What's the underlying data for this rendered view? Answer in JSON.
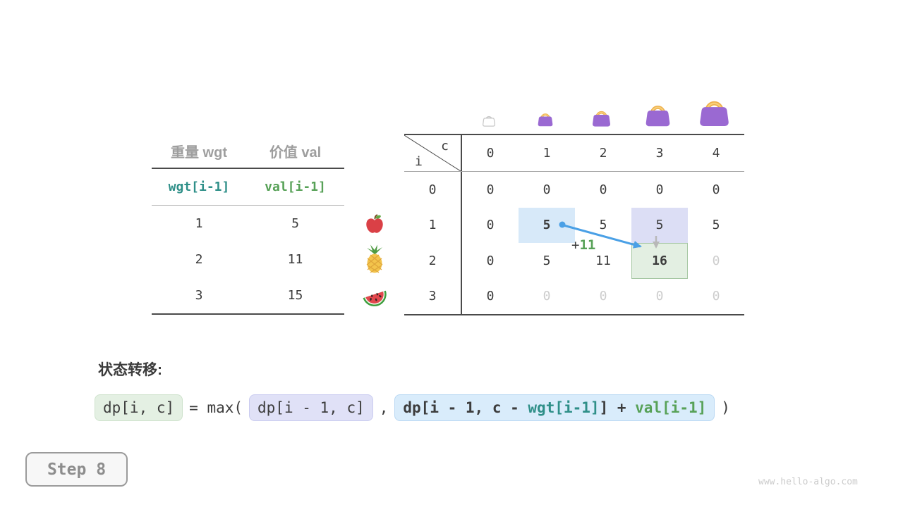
{
  "item_table": {
    "headers": [
      "重量 wgt",
      "价值 val"
    ],
    "subheaders": [
      "wgt[i-1]",
      "val[i-1]"
    ],
    "rows": [
      [
        "1",
        "5"
      ],
      [
        "2",
        "11"
      ],
      [
        "3",
        "15"
      ]
    ],
    "row_icons": [
      "apple-icon",
      "pineapple-icon",
      "watermelon-icon"
    ]
  },
  "dp_table": {
    "corner": {
      "col_var": "c",
      "row_var": "i"
    },
    "col_headers": [
      "0",
      "1",
      "2",
      "3",
      "4"
    ],
    "col_icons": [
      "empty-bag-icon",
      "bag-icon",
      "bag-icon",
      "bag-icon",
      "bag-icon"
    ],
    "rows": [
      {
        "label": "0",
        "cells": [
          {
            "v": "0"
          },
          {
            "v": "0"
          },
          {
            "v": "0"
          },
          {
            "v": "0"
          },
          {
            "v": "0"
          }
        ]
      },
      {
        "label": "1",
        "cells": [
          {
            "v": "0"
          },
          {
            "v": "5",
            "bold": true,
            "hl": "blue"
          },
          {
            "v": "5"
          },
          {
            "v": "5",
            "hl": "lavender"
          },
          {
            "v": "5"
          }
        ]
      },
      {
        "label": "2",
        "cells": [
          {
            "v": "0"
          },
          {
            "v": "5"
          },
          {
            "v": "11"
          },
          {
            "v": "16",
            "bold": true,
            "hl": "green"
          },
          {
            "v": "0",
            "dim": true
          }
        ]
      },
      {
        "label": "3",
        "cells": [
          {
            "v": "0"
          },
          {
            "v": "0",
            "dim": true
          },
          {
            "v": "0",
            "dim": true
          },
          {
            "v": "0",
            "dim": true
          },
          {
            "v": "0",
            "dim": true
          }
        ]
      }
    ],
    "annotation": {
      "plus": "+",
      "value": "11"
    }
  },
  "transition": {
    "title": "状态转移:",
    "formula": {
      "result": "dp[i, c]",
      "operator": "= max(",
      "arg1": "dp[i - 1, c]",
      "comma": ",",
      "arg2_prefix": "dp[i - 1, c - ",
      "arg2_wgt": "wgt[i-1]",
      "arg2_mid": "] + ",
      "arg2_val": "val[i-1]",
      "close": ")"
    }
  },
  "step_badge": {
    "label": "Step 8"
  },
  "watermark": "www.hello-algo.com",
  "colors": {
    "text_dark": "#3c3c3c",
    "text_gray": "#9e9e9e",
    "text_dim": "#cdcdcd",
    "line_dark": "#4a4a4a",
    "line_gray": "#a8a8a8",
    "accent_teal": "#2e8f88",
    "accent_green": "#57a157",
    "arrow_blue": "#4aa0e6",
    "arrow_gray": "#b8b8b8",
    "hl_blue": "#d7e9f9",
    "hl_lavender": "#dcdef5",
    "hl_green_bg": "#e3efe2",
    "hl_green_border": "#a6c7a3",
    "chip_green_bg": "#e4f0e3",
    "chip_green_border": "#cfe3cd",
    "chip_lavender_bg": "#e0e1f7",
    "chip_lavender_border": "#caccf0",
    "chip_blue_bg": "#d9ecfb",
    "chip_blue_border": "#bad9f3",
    "badge_border": "#9b9b9b",
    "badge_text": "#8d8d8d",
    "badge_bg": "#f7f7f7",
    "watermark_color": "#cbcbcb",
    "bag_purple": "#9a69d2",
    "bag_handle": "#edaf4c",
    "bag_handle_light": "#f8d079",
    "bag_empty_stroke": "#c8c8c8",
    "apple_red": "#da4046",
    "leaf_green": "#61a744",
    "stem_brown": "#7a4a21",
    "pineapple_body": "#f3c44c",
    "pineapple_leaf": "#4e9a42",
    "pineapple_line": "#dfa63a",
    "melon_rind": "#3e9e3e",
    "melon_inner": "#f4f9f0",
    "melon_flesh": "#e2474d",
    "seed": "#3a2422"
  }
}
